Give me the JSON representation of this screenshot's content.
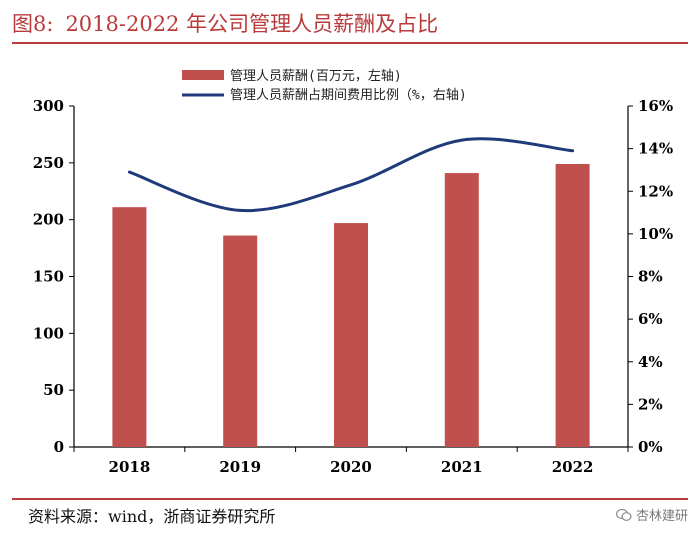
{
  "header": {
    "figure_label": "图8:",
    "title": "2018-2022 年公司管理人员薪酬及占比"
  },
  "footer": {
    "source": "资料来源：wind，浙商证券研究所",
    "watermark_text": "杏林建研",
    "watermark_icon": "wechat-icon"
  },
  "colors": {
    "title": "#b83a3a",
    "bar": "#c0504d",
    "line": "#1f3a7a",
    "axis": "#000000"
  },
  "chart_data": {
    "type": "bar",
    "categories": [
      "2018",
      "2019",
      "2020",
      "2021",
      "2022"
    ],
    "series": [
      {
        "name": "管理人员薪酬(百万元，左轴)",
        "type": "bar",
        "axis": "left",
        "values": [
          211,
          186,
          197,
          241,
          249
        ]
      },
      {
        "name": "管理人员薪酬占期间费用比例（%，右轴)",
        "type": "line",
        "axis": "right",
        "values": [
          12.9,
          11.1,
          12.3,
          14.4,
          13.9
        ]
      }
    ],
    "y_left": {
      "min": 0,
      "max": 300,
      "step": 50,
      "ticks": [
        "0",
        "50",
        "100",
        "150",
        "200",
        "250",
        "300"
      ]
    },
    "y_right": {
      "min": 0,
      "max": 16,
      "step": 2,
      "ticks": [
        "0%",
        "2%",
        "4%",
        "6%",
        "8%",
        "10%",
        "12%",
        "14%",
        "16%"
      ]
    },
    "legend_position": "top-center",
    "grid": false
  }
}
